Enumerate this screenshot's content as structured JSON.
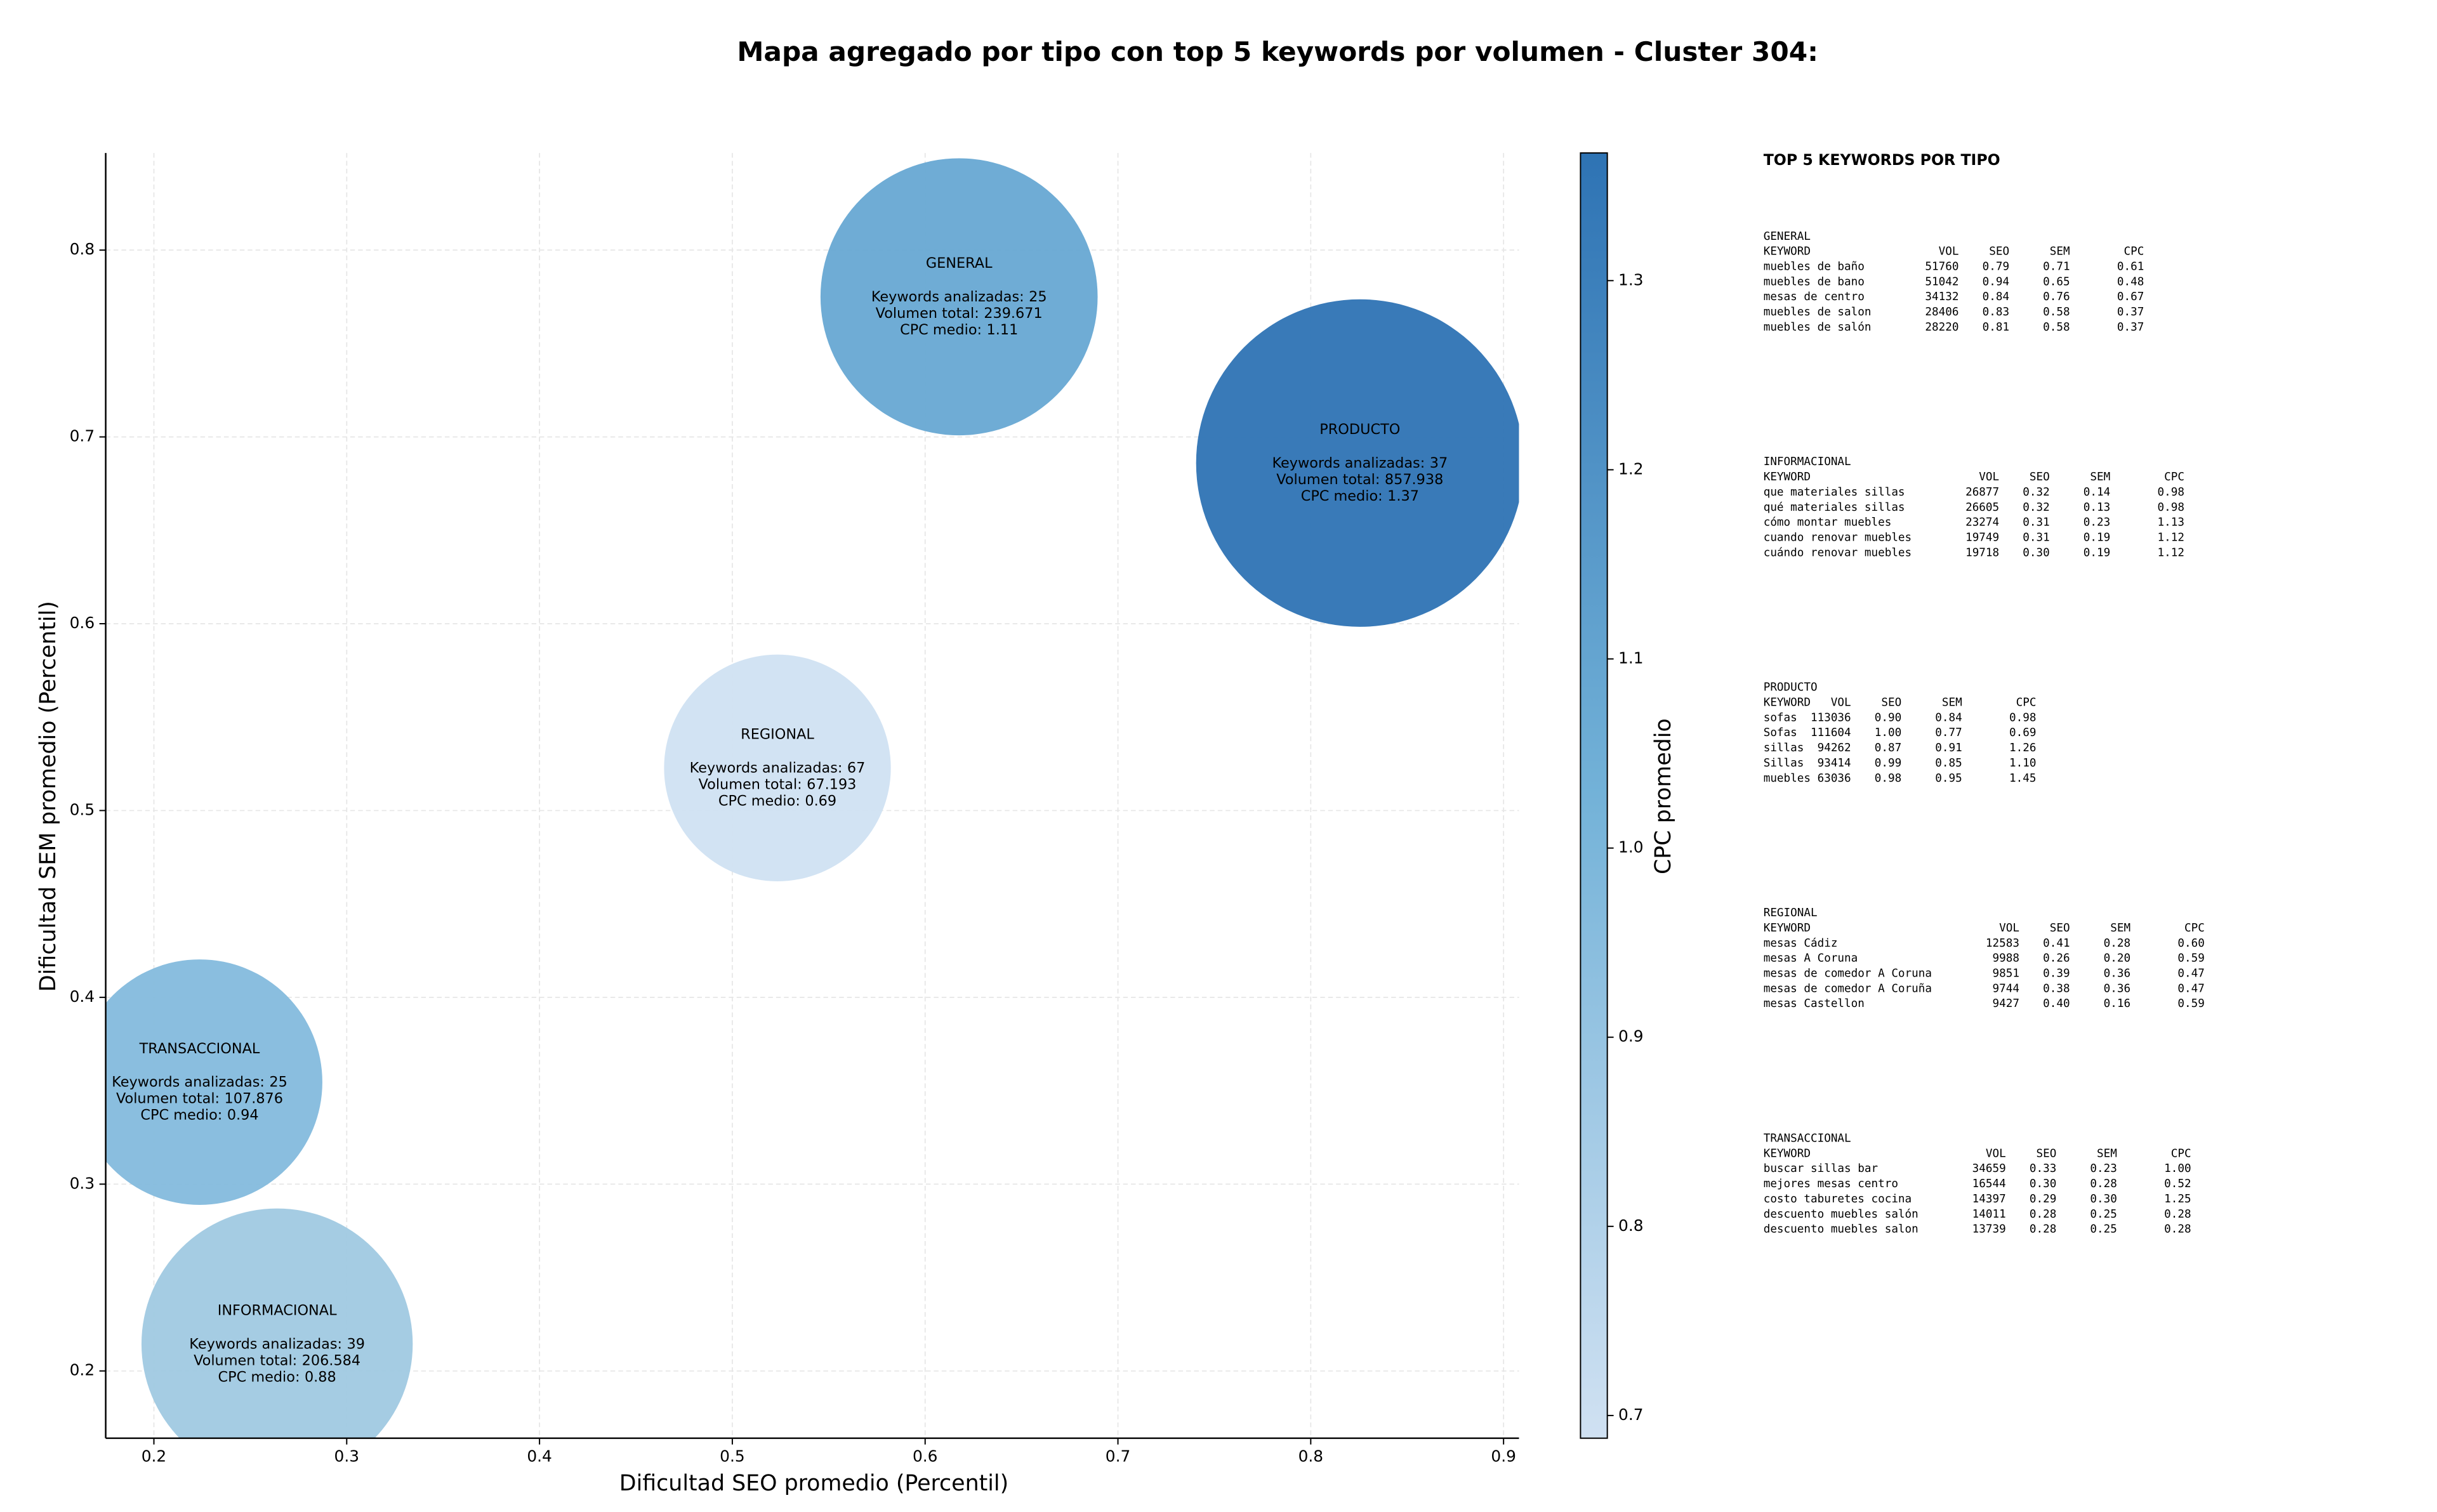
{
  "chart_data": {
    "type": "bubble",
    "title": "Mapa agregado por tipo con top 5 keywords por volumen - Cluster 304:",
    "x_label": "Dificultad SEO promedio (Percentil)",
    "y_label": "Dificultad SEM promedio (Percentil)",
    "xlim": [
      0.175,
      0.908
    ],
    "ylim": [
      0.164,
      0.852
    ],
    "xticks": [
      0.2,
      0.3,
      0.4,
      0.5,
      0.6,
      0.7,
      0.8,
      0.9
    ],
    "yticks": [
      0.2,
      0.3,
      0.4,
      0.5,
      0.6,
      0.7,
      0.8
    ],
    "grid": true,
    "bubble_labels": [
      "Keywords analizadas:",
      "Volumen total:",
      "CPC medio:"
    ],
    "series": [
      {
        "name": "GENERAL",
        "color": "#67a8d3",
        "x": 0.6176,
        "y": 0.775,
        "keywords": 25,
        "volume": 239671,
        "volume_label": "239.671",
        "cpc": 1.11
      },
      {
        "name": "PRODUCTO",
        "color": "#2e73b4",
        "x": 0.8255,
        "y": 0.686,
        "keywords": 37,
        "volume": 857938,
        "volume_label": "857.938",
        "cpc": 1.37
      },
      {
        "name": "REGIONAL",
        "color": "#d0e1f2",
        "x": 0.5234,
        "y": 0.5228,
        "keywords": 67,
        "volume": 67193,
        "volume_label": "67.193",
        "cpc": 0.69
      },
      {
        "name": "TRANSACCIONAL",
        "color": "#84bbdd",
        "x": 0.2237,
        "y": 0.3546,
        "keywords": 25,
        "volume": 107876,
        "volume_label": "107.876",
        "cpc": 0.94
      },
      {
        "name": "INFORMACIONAL",
        "color": "#a0c9e2",
        "x": 0.2639,
        "y": 0.2144,
        "keywords": 39,
        "volume": 206584,
        "volume_label": "206.584",
        "cpc": 0.88
      }
    ],
    "colorbar": {
      "label": "CPC promedio",
      "lim": [
        0.688,
        1.3675
      ],
      "ticks": [
        0.7,
        0.8,
        0.9,
        {
          "value": 1,
          "label": "1.0"
        },
        1.1,
        1.2,
        1.3
      ],
      "colors": [
        "#d0e1f2",
        "#73b2d8",
        "#2e73b4"
      ]
    }
  },
  "keyword_tables": {
    "title": "TOP 5 KEYWORDS POR TIPO",
    "columns": [
      "KEYWORD",
      "VOL",
      "SEO",
      "SEM",
      "CPC"
    ],
    "groups": [
      {
        "name": "GENERAL",
        "rows": [
          [
            "muebles de baño",
            "51760",
            "0.79",
            "0.71",
            "0.61"
          ],
          [
            "muebles de bano",
            "51042",
            "0.94",
            "0.65",
            "0.48"
          ],
          [
            "mesas de centro",
            "34132",
            "0.84",
            "0.76",
            "0.67"
          ],
          [
            "muebles de salon",
            "28406",
            "0.83",
            "0.58",
            "0.37"
          ],
          [
            "muebles de salón",
            "28220",
            "0.81",
            "0.58",
            "0.37"
          ]
        ]
      },
      {
        "name": "INFORMACIONAL",
        "rows": [
          [
            "que materiales sillas",
            "26877",
            "0.32",
            "0.14",
            "0.98"
          ],
          [
            "qué materiales sillas",
            "26605",
            "0.32",
            "0.13",
            "0.98"
          ],
          [
            "cómo montar muebles",
            "23274",
            "0.31",
            "0.23",
            "1.13"
          ],
          [
            "cuando renovar muebles",
            "19749",
            "0.31",
            "0.19",
            "1.12"
          ],
          [
            "cuándo renovar muebles",
            "19718",
            "0.30",
            "0.19",
            "1.12"
          ]
        ]
      },
      {
        "name": "PRODUCTO",
        "rows": [
          [
            "sofas",
            "113036",
            "0.90",
            "0.84",
            "0.98"
          ],
          [
            "Sofas",
            "111604",
            "1.00",
            "0.77",
            "0.69"
          ],
          [
            "sillas",
            "94262",
            "0.87",
            "0.91",
            "1.26"
          ],
          [
            "Sillas",
            "93414",
            "0.99",
            "0.85",
            "1.10"
          ],
          [
            "muebles",
            "63036",
            "0.98",
            "0.95",
            "1.45"
          ]
        ]
      },
      {
        "name": "REGIONAL",
        "rows": [
          [
            "mesas Cádiz",
            "12583",
            "0.41",
            "0.28",
            "0.60"
          ],
          [
            "mesas A Coruna",
            "9988",
            "0.26",
            "0.20",
            "0.59"
          ],
          [
            "mesas de comedor A Coruna",
            "9851",
            "0.39",
            "0.36",
            "0.47"
          ],
          [
            "mesas de comedor A Coruña",
            "9744",
            "0.38",
            "0.36",
            "0.47"
          ],
          [
            "mesas Castellon",
            "9427",
            "0.40",
            "0.16",
            "0.59"
          ]
        ]
      },
      {
        "name": "TRANSACCIONAL",
        "rows": [
          [
            "buscar sillas bar",
            "34659",
            "0.33",
            "0.23",
            "1.00"
          ],
          [
            "mejores mesas centro",
            "16544",
            "0.30",
            "0.28",
            "0.52"
          ],
          [
            "costo taburetes cocina",
            "14397",
            "0.29",
            "0.30",
            "1.25"
          ],
          [
            "descuento muebles salón",
            "14011",
            "0.28",
            "0.25",
            "0.28"
          ],
          [
            "descuento muebles salon",
            "13739",
            "0.28",
            "0.25",
            "0.28"
          ]
        ]
      }
    ]
  }
}
